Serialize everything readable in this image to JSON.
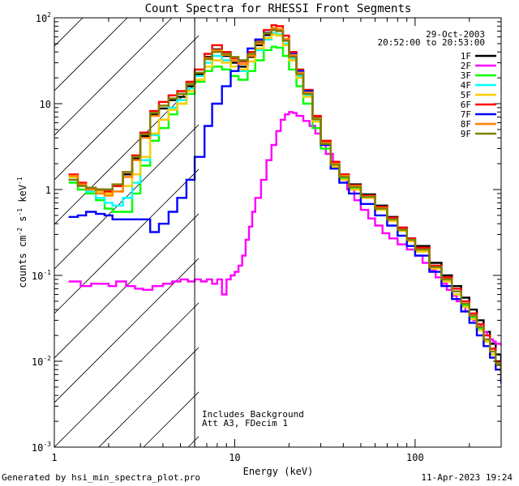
{
  "chart_data": {
    "type": "line",
    "title": "Count Spectra for RHESSI Front Segments",
    "xlabel": "Energy (keV)",
    "ylabel": "counts cm^-2 s^-1 keV^-1",
    "xscale": "log",
    "yscale": "log",
    "xlim": [
      1,
      300
    ],
    "ylim": [
      0.001,
      100
    ],
    "x_tick_labels": [
      {
        "value": 1,
        "label": "1"
      },
      {
        "value": 10,
        "label": "10"
      },
      {
        "value": 100,
        "label": "100"
      }
    ],
    "y_tick_labels": [
      {
        "value": 0.001,
        "base": "10",
        "exp": "-3"
      },
      {
        "value": 0.01,
        "base": "10",
        "exp": "-2"
      },
      {
        "value": 0.1,
        "base": "10",
        "exp": "-1"
      },
      {
        "value": 1,
        "base": "1",
        "exp": ""
      },
      {
        "value": 10,
        "base": "10",
        "exp": ""
      },
      {
        "value": 100,
        "base": "10",
        "exp": "2"
      }
    ],
    "date": "29-Oct-2003",
    "time_range": "20:52:00 to 20:53:00",
    "attenuator_cutoff_keV": 6,
    "annotations": [
      "Includes Background",
      "Att A3, FDecim 1"
    ],
    "series": [
      {
        "name": "1F",
        "color": "#000000",
        "x": [
          1.2,
          1.35,
          1.5,
          1.7,
          1.9,
          2.1,
          2.4,
          2.7,
          3.0,
          3.4,
          3.8,
          4.3,
          4.8,
          5.4,
          6.0,
          6.8,
          7.5,
          8.5,
          9.5,
          10.5,
          11.8,
          13,
          14.5,
          16,
          17,
          18.5,
          20,
          22,
          24,
          27,
          30,
          34,
          38,
          43,
          50,
          60,
          70,
          80,
          90,
          100,
          120,
          140,
          160,
          180,
          200,
          220,
          240,
          260,
          280,
          300
        ],
        "y": [
          1.3,
          1.1,
          1.05,
          1.0,
          1.0,
          1.1,
          1.5,
          2.3,
          4.2,
          7.5,
          8.8,
          11,
          12,
          16,
          22,
          35,
          43,
          36,
          30,
          27,
          35,
          48,
          63,
          74,
          72,
          55,
          36,
          23,
          13.5,
          7,
          3.6,
          2.1,
          1.5,
          1.15,
          0.88,
          0.65,
          0.48,
          0.36,
          0.27,
          0.22,
          0.14,
          0.1,
          0.075,
          0.055,
          0.04,
          0.03,
          0.022,
          0.016,
          0.012,
          0.008
        ]
      },
      {
        "name": "2F",
        "color": "#ff00ff",
        "x": [
          1.2,
          1.4,
          1.6,
          1.8,
          2.0,
          2.2,
          2.5,
          2.8,
          3.1,
          3.5,
          4,
          4.5,
          5,
          5.5,
          6,
          6.5,
          7,
          7.5,
          8,
          8.5,
          9,
          9.5,
          10,
          10.5,
          11,
          11.5,
          12,
          12.5,
          13,
          14,
          15,
          16,
          17,
          18,
          19,
          20,
          21,
          22,
          24,
          26,
          28,
          30,
          32,
          35,
          38,
          42,
          46,
          50,
          55,
          60,
          66,
          72,
          80,
          90,
          100,
          110,
          120,
          130,
          140,
          150,
          160,
          170,
          180,
          190,
          200,
          210,
          220,
          230,
          240,
          250,
          260,
          270,
          280,
          300
        ],
        "y": [
          0.085,
          0.075,
          0.08,
          0.08,
          0.075,
          0.085,
          0.075,
          0.07,
          0.068,
          0.075,
          0.08,
          0.085,
          0.09,
          0.085,
          0.09,
          0.085,
          0.09,
          0.08,
          0.09,
          0.06,
          0.09,
          0.1,
          0.11,
          0.13,
          0.17,
          0.26,
          0.37,
          0.55,
          0.8,
          1.3,
          2.2,
          3.3,
          4.8,
          6.5,
          7.5,
          8.0,
          7.8,
          7.2,
          6.3,
          5.5,
          4.5,
          3.4,
          2.6,
          1.9,
          1.4,
          1.0,
          0.75,
          0.58,
          0.46,
          0.38,
          0.31,
          0.27,
          0.23,
          0.2,
          0.17,
          0.14,
          0.115,
          0.095,
          0.08,
          0.068,
          0.058,
          0.05,
          0.044,
          0.038,
          0.034,
          0.03,
          0.027,
          0.024,
          0.022,
          0.02,
          0.018,
          0.017,
          0.016,
          0.015
        ]
      },
      {
        "name": "3F",
        "color": "#00ff00",
        "x": [
          1.2,
          1.35,
          1.5,
          1.7,
          1.9,
          2.1,
          2.4,
          2.7,
          3.0,
          3.4,
          3.8,
          4.3,
          4.8,
          5.4,
          6.0,
          6.8,
          7.5,
          8.5,
          9.5,
          10.5,
          11.8,
          13,
          14.5,
          16,
          17,
          18.5,
          20,
          22,
          24,
          27,
          30,
          34,
          38,
          43,
          50,
          60,
          70,
          80,
          90,
          100,
          120,
          140,
          160,
          180,
          200,
          220,
          240,
          260,
          280,
          300
        ],
        "y": [
          1.2,
          1.0,
          0.9,
          0.75,
          0.6,
          0.55,
          0.55,
          0.9,
          1.9,
          3.7,
          5.2,
          7.5,
          10,
          13,
          18,
          24,
          27,
          25,
          21,
          19,
          24,
          32,
          42,
          46,
          45,
          36,
          25,
          16,
          10,
          5.2,
          3.0,
          1.85,
          1.35,
          1.05,
          0.82,
          0.6,
          0.45,
          0.34,
          0.26,
          0.2,
          0.13,
          0.09,
          0.065,
          0.045,
          0.032,
          0.024,
          0.017,
          0.012,
          0.009,
          0.006
        ]
      },
      {
        "name": "4F",
        "color": "#00ffff",
        "x": [
          1.2,
          1.35,
          1.5,
          1.7,
          1.9,
          2.1,
          2.4,
          2.7,
          3.0,
          3.4,
          3.8,
          4.3,
          4.8,
          5.4,
          6.0,
          6.8,
          7.5,
          8.5,
          9.5,
          10.5,
          11.8,
          13,
          14.5,
          16,
          17,
          18.5,
          20,
          22,
          24,
          27,
          30,
          34,
          38,
          43,
          50,
          60,
          70,
          80,
          90,
          100,
          120,
          140,
          160,
          180,
          200,
          220,
          240,
          260,
          280,
          300
        ],
        "y": [
          1.3,
          1.1,
          0.95,
          0.8,
          0.7,
          0.65,
          0.8,
          1.2,
          2.2,
          4.3,
          6.5,
          9,
          11,
          15,
          21,
          30,
          36,
          32,
          27,
          24,
          31,
          42,
          56,
          66,
          64,
          50,
          33,
          21,
          12.5,
          6.5,
          3.4,
          2.0,
          1.45,
          1.1,
          0.82,
          0.6,
          0.44,
          0.33,
          0.25,
          0.19,
          0.12,
          0.085,
          0.06,
          0.043,
          0.031,
          0.023,
          0.017,
          0.012,
          0.009,
          0.006
        ]
      },
      {
        "name": "5F",
        "color": "#ffcc00",
        "x": [
          1.2,
          1.35,
          1.5,
          1.7,
          1.9,
          2.1,
          2.4,
          2.7,
          3.0,
          3.4,
          3.8,
          4.3,
          4.8,
          5.4,
          6.0,
          6.8,
          7.5,
          8.5,
          9.5,
          10.5,
          11.8,
          13,
          14.5,
          16,
          17,
          18.5,
          20,
          22,
          24,
          27,
          30,
          34,
          38,
          43,
          50,
          60,
          70,
          80,
          90,
          100,
          120,
          140,
          160,
          180,
          200,
          220,
          240,
          260,
          280,
          300
        ],
        "y": [
          1.4,
          1.15,
          1.0,
          0.95,
          0.9,
          0.95,
          1.1,
          1.5,
          2.4,
          4.5,
          6.5,
          8.5,
          10,
          14,
          19,
          27,
          32,
          30,
          27,
          25,
          31,
          44,
          58,
          64,
          62,
          48,
          32,
          20,
          12,
          6.2,
          3.3,
          1.85,
          1.3,
          1.0,
          0.8,
          0.58,
          0.43,
          0.33,
          0.25,
          0.19,
          0.12,
          0.085,
          0.06,
          0.043,
          0.031,
          0.023,
          0.017,
          0.012,
          0.009,
          0.006
        ]
      },
      {
        "name": "6F",
        "color": "#ff0000",
        "x": [
          1.2,
          1.35,
          1.5,
          1.7,
          1.9,
          2.1,
          2.4,
          2.7,
          3.0,
          3.4,
          3.8,
          4.3,
          4.8,
          5.4,
          6.0,
          6.8,
          7.5,
          8.5,
          9.5,
          10.5,
          11.8,
          13,
          14.5,
          16,
          17,
          18.5,
          20,
          22,
          24,
          27,
          30,
          34,
          38,
          43,
          50,
          60,
          70,
          80,
          90,
          100,
          120,
          140,
          160,
          180,
          200,
          220,
          240,
          260,
          280,
          300
        ],
        "y": [
          1.5,
          1.2,
          1.05,
          1.0,
          0.95,
          1.1,
          1.6,
          2.5,
          4.6,
          8.2,
          10.5,
          12.5,
          14,
          18,
          25,
          38,
          48,
          40,
          34,
          31,
          40,
          55,
          72,
          82,
          80,
          62,
          40,
          25,
          14.5,
          7.2,
          3.7,
          2.1,
          1.5,
          1.12,
          0.85,
          0.63,
          0.47,
          0.36,
          0.27,
          0.21,
          0.13,
          0.095,
          0.07,
          0.05,
          0.036,
          0.027,
          0.02,
          0.014,
          0.01,
          0.007
        ]
      },
      {
        "name": "7F",
        "color": "#0000ff",
        "x": [
          1.2,
          1.35,
          1.5,
          1.7,
          1.9,
          2.1,
          2.4,
          2.7,
          3.0,
          3.4,
          3.8,
          4.3,
          4.8,
          5.4,
          6.0,
          6.8,
          7.5,
          8.5,
          9.5,
          10.5,
          11.8,
          13,
          14.5,
          16,
          17,
          18.5,
          20,
          22,
          24,
          27,
          30,
          34,
          38,
          43,
          50,
          60,
          70,
          80,
          90,
          100,
          120,
          140,
          160,
          180,
          200,
          220,
          240,
          260,
          280,
          300
        ],
        "y": [
          0.48,
          0.5,
          0.55,
          0.52,
          0.5,
          0.45,
          0.45,
          0.45,
          0.45,
          0.32,
          0.4,
          0.55,
          0.8,
          1.3,
          2.4,
          5.5,
          10,
          16,
          24,
          32,
          44,
          56,
          67,
          72,
          70,
          56,
          38,
          24,
          14,
          6.8,
          3.3,
          1.75,
          1.2,
          0.9,
          0.68,
          0.5,
          0.38,
          0.29,
          0.22,
          0.17,
          0.11,
          0.075,
          0.053,
          0.038,
          0.028,
          0.02,
          0.015,
          0.011,
          0.008,
          0.0055
        ]
      },
      {
        "name": "8F",
        "color": "#ff8000",
        "x": [
          1.2,
          1.35,
          1.5,
          1.7,
          1.9,
          2.1,
          2.4,
          2.7,
          3.0,
          3.4,
          3.8,
          4.3,
          4.8,
          5.4,
          6.0,
          6.8,
          7.5,
          8.5,
          9.5,
          10.5,
          11.8,
          13,
          14.5,
          16,
          17,
          18.5,
          20,
          22,
          24,
          27,
          30,
          34,
          38,
          43,
          50,
          60,
          70,
          80,
          90,
          100,
          120,
          140,
          160,
          180,
          200,
          220,
          240,
          260,
          280,
          300
        ],
        "y": [
          1.45,
          1.15,
          1.0,
          0.9,
          0.85,
          0.95,
          1.4,
          2.2,
          4.0,
          7.2,
          9.5,
          11.5,
          13,
          17,
          23,
          34,
          42,
          37,
          32,
          29,
          36,
          50,
          66,
          76,
          74,
          57,
          37,
          23,
          13.5,
          6.8,
          3.5,
          2.0,
          1.45,
          1.1,
          0.83,
          0.61,
          0.45,
          0.34,
          0.26,
          0.2,
          0.125,
          0.09,
          0.065,
          0.047,
          0.034,
          0.025,
          0.018,
          0.013,
          0.0095,
          0.0065
        ]
      },
      {
        "name": "9F",
        "color": "#808000",
        "x": [
          1.2,
          1.35,
          1.5,
          1.7,
          1.9,
          2.1,
          2.4,
          2.7,
          3.0,
          3.4,
          3.8,
          4.3,
          4.8,
          5.4,
          6.0,
          6.8,
          7.5,
          8.5,
          9.5,
          10.5,
          11.8,
          13,
          14.5,
          16,
          17,
          18.5,
          20,
          22,
          24,
          27,
          30,
          34,
          38,
          43,
          50,
          60,
          70,
          80,
          90,
          100,
          120,
          140,
          160,
          180,
          200,
          220,
          240,
          260,
          280,
          300
        ],
        "y": [
          1.3,
          1.1,
          1.05,
          1.0,
          1.0,
          1.15,
          1.6,
          2.4,
          4.4,
          7.8,
          9.5,
          11.5,
          13,
          17,
          23,
          33,
          40,
          38,
          35,
          32,
          38,
          52,
          66,
          72,
          70,
          54,
          35,
          22,
          13,
          6.6,
          3.4,
          1.95,
          1.4,
          1.07,
          0.82,
          0.6,
          0.45,
          0.34,
          0.26,
          0.2,
          0.125,
          0.09,
          0.065,
          0.047,
          0.034,
          0.025,
          0.018,
          0.013,
          0.0095,
          0.0065
        ]
      }
    ]
  },
  "footer": {
    "generated_by": "Generated by hsi_min_spectra_plot.pro",
    "timestamp": "11-Apr-2023 19:24"
  }
}
